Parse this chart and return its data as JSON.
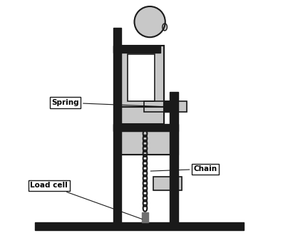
{
  "bg_color": "#ffffff",
  "dark": "#1a1a1a",
  "gray_light": "#c8c8c8",
  "gray_med": "#aaaaaa",
  "gray_dark": "#707070",
  "figure_size": [
    3.97,
    3.34
  ],
  "dpi": 100,
  "xlim": [
    0,
    10
  ],
  "ylim": [
    0,
    10
  ],
  "labels": {
    "spring": "Spring",
    "load_cell": "Load cell",
    "chain": "Chain"
  }
}
